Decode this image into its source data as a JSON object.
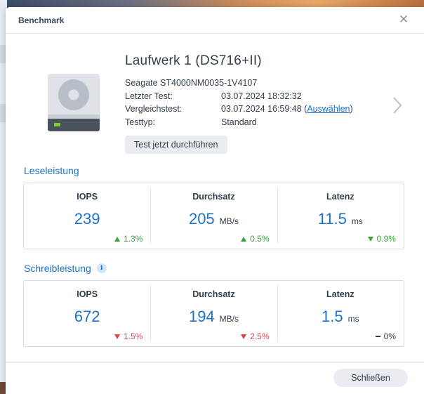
{
  "dialog": {
    "title": "Benchmark",
    "close_icon": "close-icon"
  },
  "drive": {
    "name": "Laufwerk 1 (DS716+II)",
    "model": "Seagate ST4000NM0035-1V4107",
    "last_test_label": "Letzter Test:",
    "last_test_value": "03.07.2024 18:32:32",
    "compare_label": "Vergleichstest:",
    "compare_value": "03.07.2024 16:59:48 (",
    "compare_link": "Auswählen",
    "compare_suffix": ")",
    "testtype_label": "Testtyp:",
    "testtype_value": "Standard",
    "run_button": "Test jetzt durchführen",
    "icon": "hard-drive-icon",
    "next_icon": "chevron-right-icon"
  },
  "read": {
    "title": "Leseleistung",
    "iops_label": "IOPS",
    "iops_value": "239",
    "iops_delta": "1.3%",
    "iops_trend": "up",
    "throughput_label": "Durchsatz",
    "throughput_value": "205",
    "throughput_unit": "MB/s",
    "throughput_delta": "0.5%",
    "throughput_trend": "up",
    "latency_label": "Latenz",
    "latency_value": "11.5",
    "latency_unit": "ms",
    "latency_delta": "0.9%",
    "latency_trend": "down-good"
  },
  "write": {
    "title": "Schreibleistung",
    "info_icon": "info-icon",
    "iops_label": "IOPS",
    "iops_value": "672",
    "iops_delta": "1.5%",
    "iops_trend": "down",
    "throughput_label": "Durchsatz",
    "throughput_value": "194",
    "throughput_unit": "MB/s",
    "throughput_delta": "2.5%",
    "throughput_trend": "down",
    "latency_label": "Latenz",
    "latency_value": "1.5",
    "latency_unit": "ms",
    "latency_delta": "0%",
    "latency_trend": "flat"
  },
  "footer": {
    "close_button": "Schließen"
  },
  "colors": {
    "accent": "#1a73c8",
    "positive": "#3aa23e",
    "negative": "#e0454e"
  }
}
